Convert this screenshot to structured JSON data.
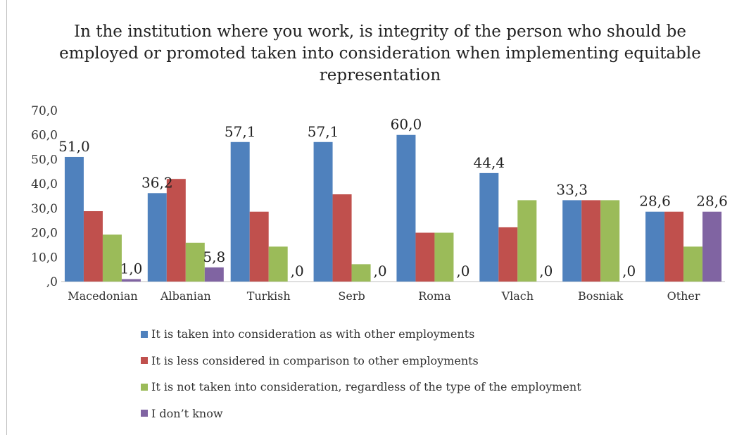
{
  "chart_data": {
    "type": "bar",
    "title": "In the institution where you work, is integrity of the person who should be employed or promoted taken into consideration when implementing equitable representation",
    "categories": [
      "Macedonian",
      "Albanian",
      "Turkish",
      "Serb",
      "Roma",
      "Vlach",
      "Bosniak",
      "Other"
    ],
    "series": [
      {
        "name": "It is taken into consideration as with other employments",
        "color": "#4F81BD",
        "values": [
          51.0,
          36.2,
          57.1,
          57.1,
          60.0,
          44.4,
          33.3,
          28.6
        ]
      },
      {
        "name": "It is less considered in comparison to other employments",
        "color": "#C0504D",
        "values": [
          28.8,
          42.0,
          28.6,
          35.7,
          20.0,
          22.2,
          33.3,
          28.6
        ]
      },
      {
        "name": "It is not taken into consideration, regardless of the type of the employment",
        "color": "#9BBB59",
        "values": [
          19.2,
          15.9,
          14.3,
          7.1,
          20.0,
          33.3,
          33.3,
          14.3
        ]
      },
      {
        "name": "I don’t know",
        "color": "#8064A2",
        "values": [
          1.0,
          5.8,
          0.0,
          0.0,
          0.0,
          0.0,
          0.0,
          28.6
        ]
      }
    ],
    "data_labels": [
      {
        "category": "Macedonian",
        "series": 0,
        "text": "51,0"
      },
      {
        "category": "Macedonian",
        "series": 3,
        "text": "1,0"
      },
      {
        "category": "Albanian",
        "series": 0,
        "text": "36,2"
      },
      {
        "category": "Albanian",
        "series": 3,
        "text": "5,8"
      },
      {
        "category": "Turkish",
        "series": 0,
        "text": "57,1"
      },
      {
        "category": "Turkish",
        "series": 3,
        "text": ",0"
      },
      {
        "category": "Serb",
        "series": 0,
        "text": "57,1"
      },
      {
        "category": "Serb",
        "series": 3,
        "text": ",0"
      },
      {
        "category": "Roma",
        "series": 0,
        "text": "60,0"
      },
      {
        "category": "Roma",
        "series": 3,
        "text": ",0"
      },
      {
        "category": "Vlach",
        "series": 0,
        "text": "44,4"
      },
      {
        "category": "Vlach",
        "series": 3,
        "text": ",0"
      },
      {
        "category": "Bosniak",
        "series": 0,
        "text": "33,3"
      },
      {
        "category": "Bosniak",
        "series": 3,
        "text": ",0"
      },
      {
        "category": "Other",
        "series": 0,
        "text": "28,6"
      },
      {
        "category": "Other",
        "series": 3,
        "text": "28,6"
      }
    ],
    "y_ticks": [
      ",0",
      "10,0",
      "20,0",
      "30,0",
      "40,0",
      "50,0",
      "60,0",
      "70,0"
    ],
    "ylim": [
      0,
      70
    ],
    "xlabel": "",
    "ylabel": "",
    "grid": false,
    "legend_position": "bottom"
  }
}
